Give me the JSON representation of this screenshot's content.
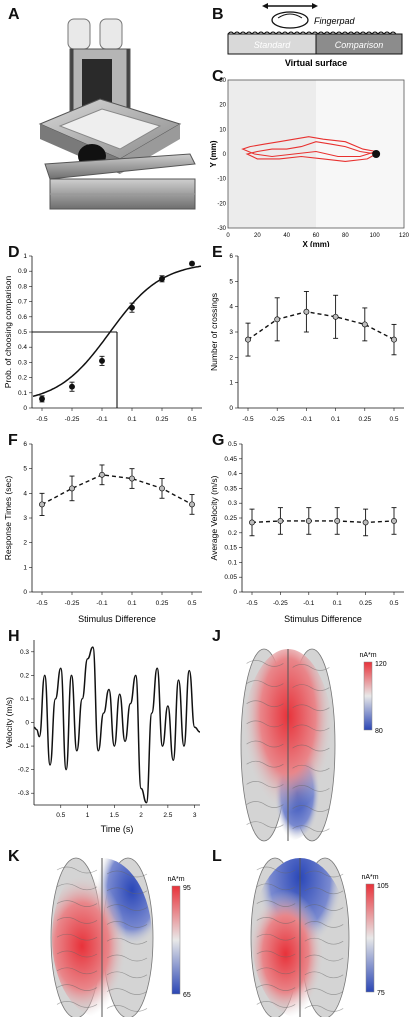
{
  "panel_labels": {
    "A": "A",
    "B": "B",
    "C": "C",
    "D": "D",
    "E": "E",
    "F": "F",
    "G": "G",
    "H": "H",
    "J": "J",
    "K": "K",
    "L": "L"
  },
  "panel_b": {
    "fingerpad_label": "Fingerpad",
    "standard_label": "Standard",
    "comparison_label": "Comparison",
    "surface_label": "Virtual surface"
  },
  "chart_data": [
    {
      "panel": "C",
      "type": "line",
      "xlabel": "X (mm)",
      "ylabel": "Y (mm)",
      "xlim": [
        0,
        120
      ],
      "ylim": [
        -30,
        30
      ],
      "xticks": [
        "0",
        "20",
        "40",
        "60",
        "80",
        "100",
        "120"
      ],
      "yticks": [
        "30",
        "20",
        "10",
        "0",
        "-10",
        "-20",
        "-30"
      ],
      "shaded_region_x": [
        0,
        60
      ],
      "series": [
        {
          "x": [
            101,
            90,
            80,
            70,
            60,
            50,
            40,
            30,
            20,
            13,
            20,
            35,
            50,
            65,
            80,
            95,
            101
          ],
          "y": [
            0,
            1,
            3,
            4,
            5,
            3,
            2,
            2,
            1,
            0,
            -2,
            -2,
            -1,
            -2,
            -3,
            -2,
            0
          ]
        },
        {
          "x": [
            101,
            92,
            80,
            65,
            55,
            45,
            35,
            25,
            15,
            10,
            18,
            30,
            45,
            60,
            75,
            90,
            101
          ],
          "y": [
            1,
            2,
            5,
            6,
            7,
            6,
            5,
            4,
            3,
            2,
            0,
            -1,
            0,
            1,
            -1,
            -1,
            1
          ]
        }
      ]
    },
    {
      "panel": "D",
      "type": "line",
      "ylabel": "Prob. of choosing comparison",
      "xlabel": "",
      "categories": [
        "-0.5",
        "-0.25",
        "-0.1",
        "0.1",
        "0.25",
        "0.5"
      ],
      "ylim": [
        0,
        1
      ],
      "yticks": [
        "0",
        "0.1",
        "0.2",
        "0.3",
        "0.4",
        "0.5",
        "0.6",
        "0.7",
        "0.8",
        "0.9",
        "1"
      ],
      "series": [
        {
          "values": [
            0.06,
            0.14,
            0.31,
            0.66,
            0.85,
            0.95
          ],
          "errors": [
            0.02,
            0.03,
            0.03,
            0.03,
            0.02,
            0.01
          ]
        }
      ],
      "threshold_marker": {
        "x": 0.0,
        "y": 0.5
      }
    },
    {
      "panel": "E",
      "type": "line",
      "ylabel": "Number of crossings",
      "categories": [
        "-0.5",
        "-0.25",
        "-0.1",
        "0.1",
        "0.25",
        "0.5"
      ],
      "ylim": [
        0,
        6
      ],
      "yticks": [
        "0",
        "1",
        "2",
        "3",
        "4",
        "5",
        "6"
      ],
      "series": [
        {
          "values": [
            2.7,
            3.5,
            3.8,
            3.6,
            3.3,
            2.7
          ],
          "errors": [
            0.65,
            0.85,
            0.8,
            0.85,
            0.65,
            0.6
          ]
        }
      ]
    },
    {
      "panel": "F",
      "type": "line",
      "ylabel": "Response Times (sec)",
      "xlabel": "Stimulus Difference",
      "categories": [
        "-0.5",
        "-0.25",
        "-0.1",
        "0.1",
        "0.25",
        "0.5"
      ],
      "ylim": [
        0,
        6
      ],
      "yticks": [
        "0",
        "1",
        "2",
        "3",
        "4",
        "5",
        "6"
      ],
      "series": [
        {
          "values": [
            3.55,
            4.2,
            4.75,
            4.6,
            4.2,
            3.55
          ],
          "errors": [
            0.45,
            0.5,
            0.4,
            0.4,
            0.4,
            0.4
          ]
        }
      ]
    },
    {
      "panel": "G",
      "type": "line",
      "ylabel": "Average Velocity (m/s)",
      "xlabel": "Stimulus Difference",
      "categories": [
        "-0.5",
        "-0.25",
        "-0.1",
        "0.1",
        "0.25",
        "0.5"
      ],
      "ylim": [
        0,
        0.5
      ],
      "yticks": [
        "0",
        "0.05",
        "0.1",
        "0.15",
        "0.2",
        "0.25",
        "0.3",
        "0.35",
        "0.4",
        "0.45",
        "0.5"
      ],
      "series": [
        {
          "values": [
            0.235,
            0.24,
            0.24,
            0.24,
            0.235,
            0.24
          ],
          "errors": [
            0.045,
            0.045,
            0.045,
            0.045,
            0.045,
            0.045
          ]
        }
      ]
    },
    {
      "panel": "H",
      "type": "line",
      "ylabel": "Velocity (m/s)",
      "xlabel": "Time (s)",
      "xlim": [
        0,
        3.1
      ],
      "ylim": [
        -0.35,
        0.35
      ],
      "xticks": [
        "0.5",
        "1",
        "1.5",
        "2",
        "2.5",
        "3"
      ],
      "yticks": [
        "0.3",
        "0.2",
        "0.1",
        "0",
        "-0.1",
        "-0.2",
        "-0.3"
      ],
      "series": [
        {
          "x": [
            0.0,
            0.05,
            0.1,
            0.2,
            0.3,
            0.4,
            0.5,
            0.6,
            0.7,
            0.8,
            0.9,
            1.0,
            1.1,
            1.2,
            1.3,
            1.4,
            1.5,
            1.6,
            1.7,
            1.8,
            1.9,
            2.0,
            2.1,
            2.2,
            2.3,
            2.4,
            2.5,
            2.6,
            2.7,
            2.8,
            2.9,
            3.0,
            3.1
          ],
          "y": [
            -0.02,
            -0.03,
            -0.06,
            0.2,
            -0.18,
            0.1,
            0.23,
            -0.2,
            0.2,
            -0.12,
            0.1,
            0.27,
            0.32,
            -0.12,
            0.04,
            0.14,
            -0.1,
            0.12,
            -0.08,
            0.08,
            0.2,
            -0.28,
            -0.34,
            0.04,
            0.23,
            -0.1,
            0.07,
            -0.16,
            0.18,
            -0.1,
            0.22,
            -0.02,
            -0.04
          ]
        }
      ]
    }
  ],
  "brain_maps": [
    {
      "panel": "J",
      "unit": "nA*m",
      "max": "120",
      "min": "80"
    },
    {
      "panel": "K",
      "unit": "nA*m",
      "max": "95",
      "min": "65"
    },
    {
      "panel": "L",
      "unit": "nA*m",
      "max": "105",
      "min": "75"
    }
  ]
}
